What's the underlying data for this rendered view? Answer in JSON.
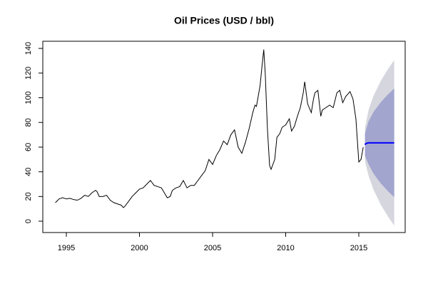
{
  "chart_data": {
    "type": "line",
    "title": "Oil Prices (USD / bbl)",
    "xlim": [
      1993.39,
      2018.17
    ],
    "ylim": [
      -9.2,
      145.8
    ],
    "xticks": [
      1995,
      2000,
      2005,
      2010,
      2015
    ],
    "yticks": [
      0,
      20,
      40,
      60,
      80,
      100,
      120,
      140
    ],
    "grid": false,
    "bands": [
      {
        "color": "#d6d6de",
        "x": [
          2015.42,
          2015.67,
          2016,
          2016.5,
          2017,
          2017.42
        ],
        "lower": [
          48.6,
          36.7,
          25.6,
          13.4,
          3.6,
          -3.5
        ],
        "upper": [
          75.4,
          90.3,
          101.4,
          113.6,
          123.4,
          130.5
        ]
      },
      {
        "color": "#a2a5ce",
        "x": [
          2015.42,
          2015.67,
          2016,
          2016.5,
          2017,
          2017.42
        ],
        "lower": [
          53,
          46,
          38.6,
          30.6,
          24.2,
          19.5
        ],
        "upper": [
          71,
          81,
          88.4,
          96.4,
          102.8,
          107.5
        ]
      }
    ],
    "series": [
      {
        "color": "#000000",
        "x": [
          1994.25,
          1994.5,
          1994.75,
          1995,
          1995.25,
          1995.5,
          1995.75,
          1996,
          1996.25,
          1996.5,
          1996.75,
          1997,
          1997.1,
          1997.25,
          1997.5,
          1997.75,
          1998,
          1998.25,
          1998.5,
          1998.75,
          1998.9,
          1999,
          1999.25,
          1999.5,
          1999.75,
          2000,
          2000.25,
          2000.5,
          2000.75,
          2001,
          2001.25,
          2001.5,
          2001.75,
          2001.9,
          2002.1,
          2002.25,
          2002.5,
          2002.75,
          2003,
          2003.25,
          2003.5,
          2003.75,
          2004,
          2004.25,
          2004.5,
          2004.75,
          2005,
          2005.25,
          2005.5,
          2005.75,
          2006,
          2006.25,
          2006.5,
          2006.75,
          2007,
          2007.25,
          2007.5,
          2007.75,
          2007.9,
          2008,
          2008.25,
          2008.4,
          2008.5,
          2008.6,
          2008.75,
          2008.9,
          2009,
          2009.25,
          2009.4,
          2009.6,
          2009.75,
          2010,
          2010.25,
          2010.4,
          2010.6,
          2010.8,
          2011,
          2011.2,
          2011.3,
          2011.5,
          2011.75,
          2011.9,
          2012,
          2012.2,
          2012.4,
          2012.5,
          2012.75,
          2013,
          2013.25,
          2013.5,
          2013.7,
          2013.9,
          2014.1,
          2014.4,
          2014.6,
          2014.8,
          2015,
          2015.15,
          2015.3
        ],
        "values": [
          15,
          18,
          19,
          18,
          18.5,
          17.5,
          17,
          18.5,
          21,
          20,
          23,
          25,
          24,
          20,
          20,
          21,
          17,
          15,
          14,
          13,
          11,
          12,
          16,
          20,
          23,
          26,
          27,
          30,
          33,
          29,
          28,
          27,
          22,
          19,
          20,
          25,
          27,
          28,
          33,
          27,
          29,
          29,
          33,
          37,
          41,
          50,
          46,
          53,
          58,
          65,
          62,
          70,
          74,
          60,
          55,
          64,
          75,
          88,
          94,
          93,
          110,
          128,
          139,
          120,
          75,
          45,
          42,
          50,
          68,
          71,
          76,
          78,
          83,
          73,
          77,
          85,
          92,
          104,
          113,
          95,
          88,
          99,
          104,
          106,
          85,
          90,
          92,
          94,
          92,
          104,
          106,
          96,
          101,
          105,
          99,
          83,
          48,
          50,
          60
        ]
      },
      {
        "color": "#0000ff",
        "x": [
          2015.42,
          2015.5,
          2015.67,
          2016,
          2016.5,
          2017,
          2017.42
        ],
        "values": [
          62,
          63,
          63.5,
          63.5,
          63.5,
          63.5,
          63.5
        ]
      }
    ]
  }
}
